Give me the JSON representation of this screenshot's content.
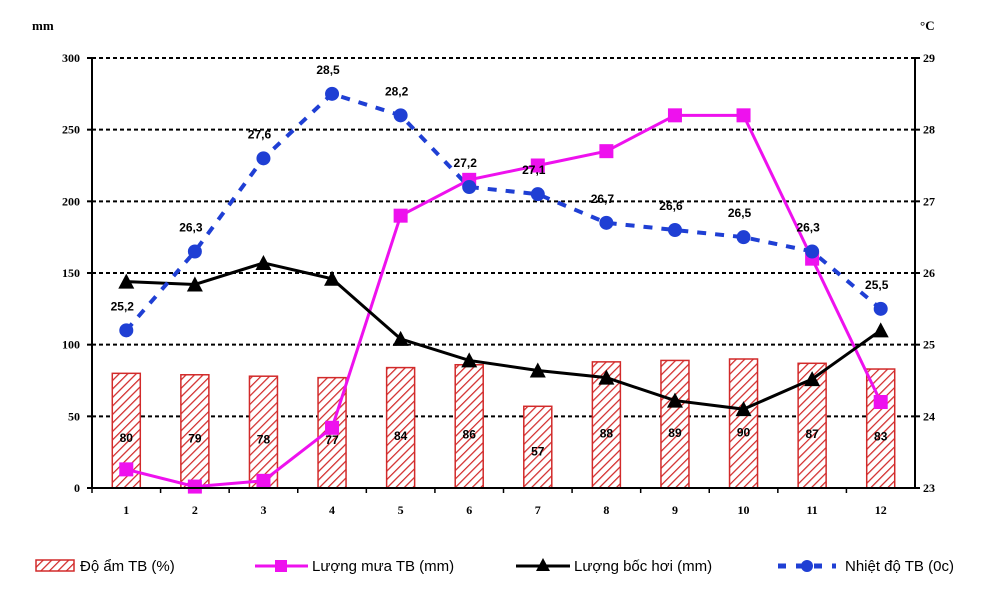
{
  "chart_data": {
    "type": "bar",
    "categories": [
      "1",
      "2",
      "3",
      "4",
      "5",
      "6",
      "7",
      "8",
      "9",
      "10",
      "11",
      "12"
    ],
    "left_axis": {
      "unit": "mm",
      "range": [
        0,
        300
      ],
      "ticks": [
        "0",
        "50",
        "100",
        "150",
        "200",
        "250",
        "300"
      ]
    },
    "right_axis": {
      "unit": "°C",
      "range": [
        23,
        29
      ],
      "ticks": [
        "23",
        "24",
        "25",
        "26",
        "27",
        "28",
        "29"
      ]
    },
    "grid": "dashed horizontal",
    "legend_position": "bottom",
    "series": [
      {
        "name": "Độ ẩm TB (%)",
        "type": "bar",
        "axis": "left",
        "color": "#d22a2a",
        "values": [
          80,
          79,
          78,
          77,
          84,
          86,
          57,
          88,
          89,
          90,
          87,
          83
        ],
        "labels": [
          "80",
          "79",
          "78",
          "77",
          "84",
          "86",
          "57",
          "88",
          "89",
          "90",
          "87",
          "83"
        ]
      },
      {
        "name": "Lượng mưa TB (mm)",
        "type": "line",
        "axis": "left",
        "color": "#ee11ee",
        "marker": "square",
        "values": [
          13,
          1,
          5,
          42,
          190,
          215,
          225,
          235,
          260,
          260,
          160,
          60
        ]
      },
      {
        "name": "Lượng bốc hơi (mm)",
        "type": "line",
        "axis": "left",
        "color": "#000000",
        "marker": "triangle",
        "values": [
          144,
          142,
          157,
          146,
          104,
          89,
          82,
          77,
          61,
          55,
          76,
          110
        ]
      },
      {
        "name": "Nhiệt độ TB (0c)",
        "type": "line",
        "axis": "right",
        "color": "#1f3fd4",
        "style": "dashed",
        "marker": "circle",
        "values": [
          25.2,
          26.3,
          27.6,
          28.5,
          28.2,
          27.2,
          27.1,
          26.7,
          26.6,
          26.5,
          26.3,
          25.5
        ],
        "labels": [
          "25,2",
          "26,3",
          "27,6",
          "28,5",
          "28,2",
          "27,2",
          "27,1",
          "26,7",
          "26,6",
          "26,5",
          "26,3",
          "25,5"
        ]
      }
    ]
  }
}
